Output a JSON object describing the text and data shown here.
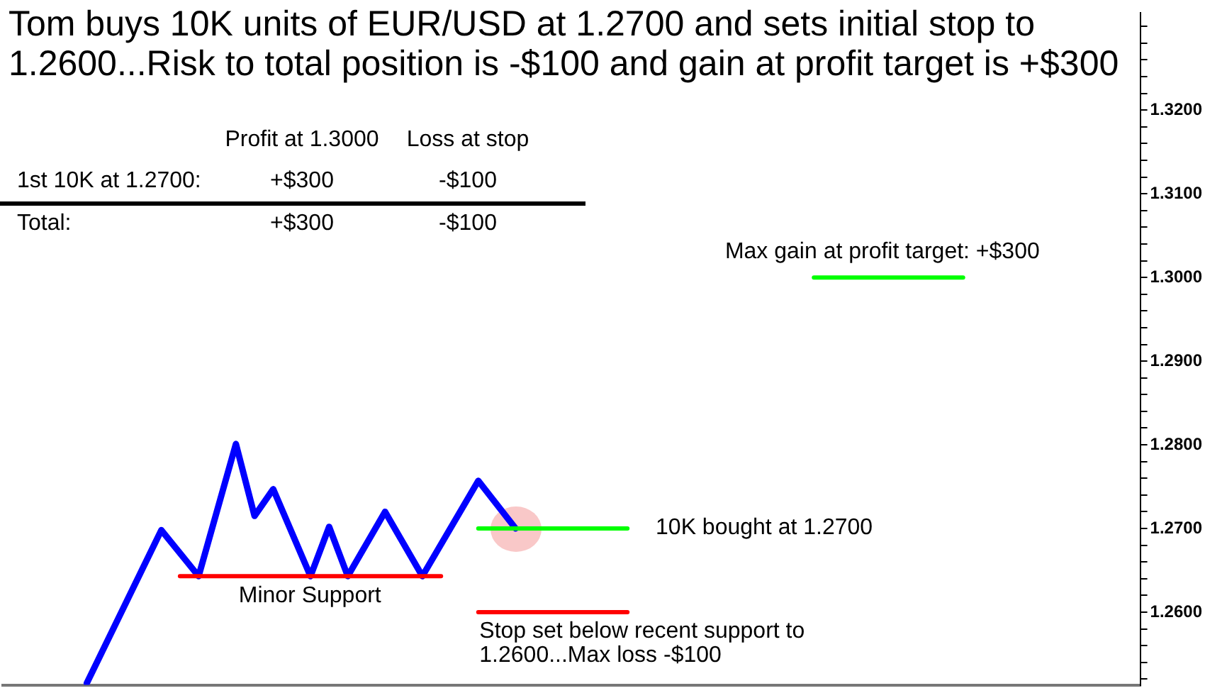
{
  "chart_data": {
    "type": "line",
    "title": "Tom buys 10K units of EUR/USD at 1.2700 and sets initial stop to 1.2600...Risk to total position is -$100 and gain at profit target is +$300",
    "categories": [
      null,
      null,
      null,
      null,
      null,
      null,
      null,
      null,
      null,
      null,
      null,
      null,
      null,
      null,
      null,
      null,
      null,
      null,
      null,
      null,
      null,
      null,
      null,
      null,
      null,
      null,
      null,
      null,
      null,
      null,
      null,
      null,
      null,
      null,
      null,
      null,
      null,
      null,
      null,
      null,
      null,
      null,
      null,
      null,
      null,
      null,
      null,
      null,
      null,
      null,
      null,
      null,
      null,
      null,
      null,
      null,
      null,
      null,
      null,
      null,
      null
    ],
    "series": [
      {
        "color": "#0000ff",
        "values": [
          null,
          null,
          null,
          null,
          1.2515,
          null,
          null,
          null,
          1.2698,
          null,
          1.2643,
          null,
          1.2801,
          1.2715,
          1.2747,
          null,
          1.2643,
          1.2702,
          1.2643,
          null,
          1.272,
          null,
          1.2643,
          null,
          null,
          1.2757,
          null,
          1.27,
          null,
          null,
          null,
          null,
          null,
          null,
          null,
          null,
          null,
          null,
          null,
          null,
          null,
          null,
          null,
          null,
          null,
          null,
          null,
          null,
          null,
          null,
          null,
          null,
          null,
          null,
          null,
          null,
          null,
          null,
          null,
          null,
          null
        ]
      },
      {
        "color": "#ff0000",
        "values": [
          null,
          null,
          null,
          null,
          null,
          null,
          null,
          null,
          null,
          1.2643,
          null,
          null,
          null,
          null,
          null,
          null,
          null,
          null,
          null,
          null,
          null,
          null,
          null,
          1.2643,
          null,
          null,
          null,
          null,
          null,
          null,
          null,
          null,
          null,
          null,
          null,
          null,
          null,
          null,
          null,
          null,
          null,
          null,
          null,
          null,
          null,
          null,
          null,
          null,
          null,
          null,
          null,
          null,
          null,
          null,
          null,
          null,
          null,
          null,
          null,
          null,
          null
        ]
      },
      {
        "color": "#00ff00",
        "values": [
          null,
          null,
          null,
          null,
          null,
          null,
          null,
          null,
          null,
          null,
          null,
          null,
          null,
          null,
          null,
          null,
          null,
          null,
          null,
          null,
          null,
          null,
          null,
          null,
          null,
          1.27,
          null,
          null,
          null,
          null,
          null,
          null,
          null,
          1.27,
          null,
          null,
          null,
          null,
          null,
          null,
          null,
          null,
          null,
          null,
          null,
          null,
          null,
          null,
          null,
          null,
          null,
          null,
          null,
          null,
          null,
          null,
          null,
          null,
          null,
          null,
          null
        ]
      },
      {
        "color": "#ff0000",
        "values": [
          null,
          null,
          null,
          null,
          null,
          null,
          null,
          null,
          null,
          null,
          null,
          null,
          null,
          null,
          null,
          null,
          null,
          null,
          null,
          null,
          null,
          null,
          null,
          null,
          null,
          1.26,
          null,
          null,
          null,
          null,
          null,
          null,
          null,
          1.26,
          null,
          null,
          null,
          null,
          null,
          null,
          null,
          null,
          null,
          null,
          null,
          null,
          null,
          null,
          null,
          null,
          null,
          null,
          null,
          null,
          null,
          null,
          null,
          null,
          null,
          null,
          null
        ]
      },
      {
        "color": "#00ff00",
        "values": [
          null,
          null,
          null,
          null,
          null,
          null,
          null,
          null,
          null,
          null,
          null,
          null,
          null,
          null,
          null,
          null,
          null,
          null,
          null,
          null,
          null,
          null,
          null,
          null,
          null,
          null,
          null,
          null,
          null,
          null,
          null,
          null,
          null,
          null,
          null,
          null,
          null,
          null,
          null,
          null,
          null,
          null,
          null,
          1.3,
          null,
          null,
          null,
          null,
          null,
          null,
          null,
          1.3,
          null,
          null,
          null,
          null,
          null,
          null,
          null,
          null,
          null
        ]
      }
    ],
    "ylim": [
      1.2513,
      1.3316
    ],
    "yticks": [
      {
        "value": 1.252,
        "label": null
      },
      {
        "value": 1.254,
        "label": null
      },
      {
        "value": 1.256,
        "label": null
      },
      {
        "value": 1.258,
        "label": null
      },
      {
        "value": 1.26,
        "label": "1.2600"
      },
      {
        "value": 1.262,
        "label": null
      },
      {
        "value": 1.264,
        "label": null
      },
      {
        "value": 1.266,
        "label": null
      },
      {
        "value": 1.268,
        "label": null
      },
      {
        "value": 1.27,
        "label": "1.2700"
      },
      {
        "value": 1.272,
        "label": null
      },
      {
        "value": 1.274,
        "label": null
      },
      {
        "value": 1.276,
        "label": null
      },
      {
        "value": 1.278,
        "label": null
      },
      {
        "value": 1.28,
        "label": "1.2800"
      },
      {
        "value": 1.282,
        "label": null
      },
      {
        "value": 1.284,
        "label": null
      },
      {
        "value": 1.286,
        "label": null
      },
      {
        "value": 1.288,
        "label": null
      },
      {
        "value": 1.29,
        "label": "1.2900"
      },
      {
        "value": 1.292,
        "label": null
      },
      {
        "value": 1.294,
        "label": null
      },
      {
        "value": 1.296,
        "label": null
      },
      {
        "value": 1.298,
        "label": null
      },
      {
        "value": 1.3,
        "label": "1.3000"
      },
      {
        "value": 1.302,
        "label": null
      },
      {
        "value": 1.304,
        "label": null
      },
      {
        "value": 1.306,
        "label": null
      },
      {
        "value": 1.308,
        "label": null
      },
      {
        "value": 1.31,
        "label": "1.3100"
      },
      {
        "value": 1.312,
        "label": null
      },
      {
        "value": 1.314,
        "label": null
      },
      {
        "value": 1.316,
        "label": null
      },
      {
        "value": 1.318,
        "label": null
      },
      {
        "value": 1.32,
        "label": "1.3200"
      },
      {
        "value": 1.322,
        "label": null
      },
      {
        "value": 1.324,
        "label": null
      },
      {
        "value": 1.326,
        "label": null
      },
      {
        "value": 1.328,
        "label": null
      },
      {
        "value": 1.33,
        "label": null
      }
    ],
    "tick_labels": "y",
    "grid": false,
    "legend": false,
    "marker": "none",
    "line_style": "solid",
    "annotations": [
      "Profit at 1.3000",
      "Loss at stop",
      "1st 10K at 1.2700:",
      "+$300",
      "-$100",
      "Total:",
      "+$300",
      "-$100",
      "Minor Support",
      "10K bought at 1.2700",
      "Stop set below recent support to 1.2600...Max loss -$100",
      "Max gain at profit target: +$300"
    ]
  }
}
